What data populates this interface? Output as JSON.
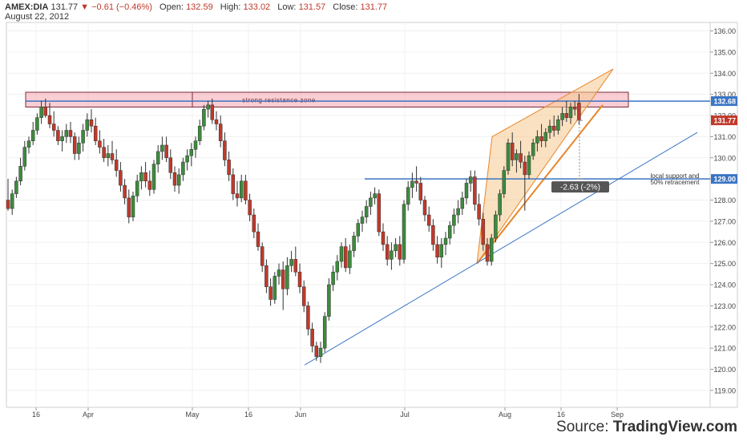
{
  "header": {
    "symbol": "AMEX:DIA",
    "last": "131.77",
    "change_arrow": "▼",
    "change": "−0.61 (−0.46%)",
    "open_label": "Open:",
    "open": "132.59",
    "high_label": "High:",
    "high": "133.02",
    "low_label": "Low:",
    "low": "131.57",
    "close_label": "Close:",
    "close": "131.77",
    "date": "August 22, 2012"
  },
  "source": {
    "prefix": "Source: ",
    "brand": "TradingView.com"
  },
  "colors": {
    "up": "#3d8b3d",
    "down": "#c0392b",
    "line": "#3a75c4",
    "wedge": "#e8862a",
    "zone": "#f4a6b0"
  },
  "chart_data": {
    "type": "candlestick",
    "ylim": [
      118.2,
      136.4
    ],
    "y_ticks": [
      "119.00",
      "120.00",
      "121.00",
      "122.00",
      "123.00",
      "124.00",
      "125.00",
      "126.00",
      "127.00",
      "128.00",
      "129.00",
      "130.00",
      "131.00",
      "132.00",
      "133.00",
      "134.00",
      "135.00",
      "136.00"
    ],
    "x_labels": [
      "16",
      "Apr",
      "May",
      "16",
      "Jun",
      "Jul",
      "Aug",
      "16",
      "Sep"
    ],
    "annotations": {
      "resistance_label": "strong resistance zone",
      "resistance_zone": [
        132.4,
        133.1
      ],
      "resistance_line": 132.68,
      "resistance_price_tag": "132.68",
      "close_price_tag": "131.77",
      "support_line": 129.0,
      "support_price_tag": "129.00",
      "support_label_1": "local support and",
      "support_label_2": "50% retracement",
      "measure_label": "-2.63 (-2%)",
      "wedge_points": [
        [
          125.0,
          0
        ],
        [
          131.0,
          0
        ],
        [
          134.2,
          0
        ]
      ],
      "trendline": [
        120.2,
        131.2
      ]
    },
    "candles": [
      [
        128,
        129,
        127.5,
        127.6
      ],
      [
        127.6,
        128.5,
        127.3,
        128.3
      ],
      [
        128.3,
        129.1,
        128.1,
        128.9
      ],
      [
        128.9,
        130,
        128.7,
        129.6
      ],
      [
        129.6,
        130.8,
        129.4,
        130.5
      ],
      [
        130.5,
        131,
        130.2,
        130.8
      ],
      [
        130.8,
        131.7,
        130.6,
        131.3
      ],
      [
        131.3,
        132.1,
        131.1,
        131.9
      ],
      [
        131.9,
        132.7,
        131.6,
        132.4
      ],
      [
        132.4,
        132.8,
        131.9,
        132.0
      ],
      [
        132.0,
        132.6,
        131.4,
        131.6
      ],
      [
        131.6,
        132.2,
        131.0,
        131.3
      ],
      [
        131.3,
        131.5,
        130.6,
        130.8
      ],
      [
        130.8,
        131.3,
        130.3,
        131.0
      ],
      [
        131.0,
        131.6,
        130.7,
        131.3
      ],
      [
        131.3,
        131.7,
        130.7,
        131.0
      ],
      [
        131.0,
        131.2,
        129.9,
        130.2
      ],
      [
        130.2,
        131.0,
        129.9,
        130.7
      ],
      [
        130.7,
        131.6,
        130.3,
        131.3
      ],
      [
        131.3,
        132.1,
        131.0,
        131.8
      ],
      [
        131.8,
        132.3,
        131.2,
        131.5
      ],
      [
        131.5,
        131.9,
        130.6,
        130.8
      ],
      [
        130.8,
        131.3,
        130.2,
        130.5
      ],
      [
        130.5,
        130.9,
        129.8,
        130.0
      ],
      [
        130.0,
        130.6,
        129.6,
        130.2
      ],
      [
        130.2,
        130.8,
        129.7,
        129.9
      ],
      [
        129.9,
        130.4,
        129.1,
        129.4
      ],
      [
        129.4,
        129.8,
        128.4,
        128.7
      ],
      [
        128.7,
        129.0,
        127.8,
        128.1
      ],
      [
        128.1,
        128.5,
        126.9,
        127.2
      ],
      [
        127.2,
        128.4,
        127.0,
        128.2
      ],
      [
        128.2,
        129.2,
        127.9,
        128.9
      ],
      [
        128.9,
        129.6,
        128.5,
        129.3
      ],
      [
        129.3,
        129.8,
        128.6,
        128.9
      ],
      [
        128.9,
        129.4,
        128.2,
        128.5
      ],
      [
        128.5,
        129.9,
        128.3,
        129.7
      ],
      [
        129.7,
        130.6,
        129.3,
        130.3
      ],
      [
        130.3,
        131.0,
        129.9,
        130.6
      ],
      [
        130.6,
        131.0,
        129.8,
        130.0
      ],
      [
        130.0,
        130.4,
        129.0,
        129.3
      ],
      [
        129.3,
        129.6,
        128.4,
        128.7
      ],
      [
        128.7,
        129.5,
        128.3,
        129.2
      ],
      [
        129.2,
        130.0,
        128.9,
        129.8
      ],
      [
        129.8,
        130.4,
        129.4,
        130.1
      ],
      [
        130.1,
        130.7,
        129.6,
        130.4
      ],
      [
        130.4,
        131.0,
        130.0,
        130.8
      ],
      [
        130.8,
        131.8,
        130.6,
        131.5
      ],
      [
        131.5,
        132.5,
        131.3,
        132.3
      ],
      [
        132.3,
        132.7,
        131.9,
        132.5
      ],
      [
        132.5,
        132.8,
        131.6,
        131.8
      ],
      [
        131.8,
        132.2,
        131.3,
        131.6
      ],
      [
        131.6,
        132.0,
        130.5,
        130.8
      ],
      [
        130.8,
        131.2,
        129.6,
        129.9
      ],
      [
        129.9,
        130.3,
        128.9,
        129.2
      ],
      [
        129.2,
        129.5,
        128.0,
        128.3
      ],
      [
        128.3,
        128.9,
        127.7,
        128.1
      ],
      [
        128.1,
        129.2,
        127.9,
        128.9
      ],
      [
        128.9,
        129.2,
        127.8,
        128.0
      ],
      [
        128.0,
        128.3,
        127.0,
        127.3
      ],
      [
        127.3,
        127.6,
        126.2,
        126.5
      ],
      [
        126.5,
        126.9,
        125.6,
        125.8
      ],
      [
        125.8,
        126.0,
        124.6,
        124.9
      ],
      [
        124.9,
        125.2,
        123.6,
        123.9
      ],
      [
        123.9,
        124.3,
        123.0,
        123.3
      ],
      [
        123.3,
        124.6,
        123.1,
        124.4
      ],
      [
        124.4,
        125.0,
        124.0,
        124.7
      ],
      [
        124.7,
        125.1,
        122.8,
        123.8
      ],
      [
        123.8,
        125.3,
        123.5,
        124.9
      ],
      [
        124.9,
        125.6,
        124.6,
        125.2
      ],
      [
        125.2,
        125.8,
        124.4,
        124.6
      ],
      [
        124.6,
        125.0,
        123.6,
        123.9
      ],
      [
        123.9,
        124.2,
        122.7,
        123.0
      ],
      [
        123.0,
        123.2,
        121.6,
        121.9
      ],
      [
        121.9,
        122.2,
        120.8,
        121.1
      ],
      [
        121.1,
        121.3,
        120.4,
        120.6
      ],
      [
        120.6,
        121.3,
        120.3,
        121.0
      ],
      [
        121.0,
        122.7,
        120.8,
        122.5
      ],
      [
        122.5,
        124.3,
        122.3,
        124.0
      ],
      [
        124.0,
        124.9,
        123.7,
        124.6
      ],
      [
        124.6,
        125.4,
        124.2,
        125.1
      ],
      [
        125.1,
        126.0,
        124.8,
        125.8
      ],
      [
        125.8,
        126.2,
        124.6,
        124.8
      ],
      [
        124.8,
        125.9,
        124.5,
        125.6
      ],
      [
        125.6,
        126.5,
        125.3,
        126.3
      ],
      [
        126.3,
        127.1,
        126.0,
        126.9
      ],
      [
        126.9,
        127.5,
        126.5,
        127.2
      ],
      [
        127.2,
        128.0,
        126.9,
        127.7
      ],
      [
        127.7,
        128.4,
        127.3,
        128.1
      ],
      [
        128.1,
        128.6,
        127.8,
        128.3
      ],
      [
        128.3,
        128.5,
        126.3,
        126.5
      ],
      [
        126.5,
        126.9,
        125.6,
        125.9
      ],
      [
        125.9,
        126.3,
        124.9,
        125.2
      ],
      [
        125.2,
        126.0,
        124.7,
        125.6
      ],
      [
        125.6,
        126.2,
        125.3,
        125.9
      ],
      [
        125.9,
        126.3,
        124.9,
        125.2
      ],
      [
        125.2,
        128.0,
        125.0,
        127.8
      ],
      [
        127.8,
        128.9,
        127.5,
        128.6
      ],
      [
        128.6,
        129.3,
        128.1,
        128.9
      ],
      [
        128.9,
        129.6,
        128.4,
        128.8
      ],
      [
        128.8,
        129.1,
        127.8,
        128.0
      ],
      [
        128.0,
        128.2,
        127.0,
        127.3
      ],
      [
        127.3,
        127.7,
        126.5,
        126.8
      ],
      [
        126.8,
        127.1,
        125.6,
        125.9
      ],
      [
        125.9,
        126.3,
        125.0,
        125.3
      ],
      [
        125.3,
        126.2,
        124.8,
        125.9
      ],
      [
        125.9,
        126.5,
        125.4,
        126.2
      ],
      [
        126.2,
        127.0,
        125.9,
        126.8
      ],
      [
        126.8,
        127.6,
        126.4,
        127.3
      ],
      [
        127.3,
        128.0,
        126.9,
        127.6
      ],
      [
        127.6,
        128.4,
        127.3,
        128.1
      ],
      [
        128.1,
        129.0,
        127.8,
        128.8
      ],
      [
        128.8,
        129.4,
        128.4,
        129.1
      ],
      [
        129.1,
        129.4,
        127.5,
        127.8
      ],
      [
        127.8,
        128.3,
        126.8,
        127.1
      ],
      [
        127.1,
        127.4,
        125.6,
        125.9
      ],
      [
        125.9,
        126.2,
        124.9,
        125.1
      ],
      [
        125.1,
        126.4,
        124.9,
        126.2
      ],
      [
        126.2,
        127.5,
        126.0,
        127.3
      ],
      [
        127.3,
        128.5,
        127.0,
        128.3
      ],
      [
        128.3,
        129.6,
        128.1,
        129.4
      ],
      [
        129.4,
        130.9,
        129.2,
        130.7
      ],
      [
        130.7,
        131.2,
        129.6,
        129.9
      ],
      [
        129.9,
        130.4,
        129.3,
        130.2
      ],
      [
        130.2,
        130.8,
        129.5,
        129.8
      ],
      [
        129.8,
        130.1,
        127.5,
        129.2
      ],
      [
        129.2,
        130.3,
        129.0,
        130.1
      ],
      [
        130.1,
        130.9,
        129.9,
        130.7
      ],
      [
        130.7,
        131.3,
        130.3,
        131.0
      ],
      [
        131.0,
        131.6,
        130.5,
        130.8
      ],
      [
        130.8,
        131.4,
        130.5,
        131.2
      ],
      [
        131.2,
        131.8,
        130.9,
        131.5
      ],
      [
        131.5,
        132.0,
        131.0,
        131.3
      ],
      [
        131.3,
        132.0,
        131.1,
        131.8
      ],
      [
        131.8,
        132.4,
        131.5,
        132.1
      ],
      [
        132.1,
        132.7,
        131.7,
        131.9
      ],
      [
        131.9,
        132.6,
        131.6,
        132.4
      ],
      [
        132.4,
        132.7,
        132.0,
        132.3
      ],
      [
        132.59,
        133.02,
        131.57,
        131.77
      ]
    ]
  }
}
